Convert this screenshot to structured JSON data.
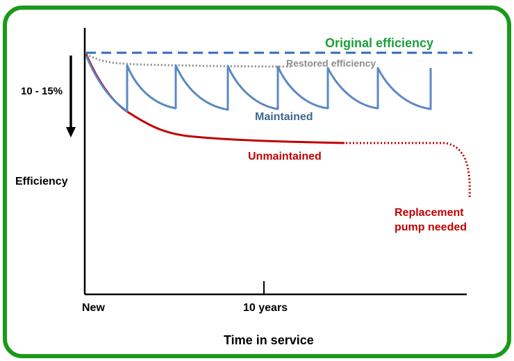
{
  "labels": {
    "original": "Original efficiency",
    "restored": "Restored efficiency",
    "drop": "10 - 15%",
    "maintained": "Maintained",
    "unmaintained": "Unmaintained",
    "replacement_line1": "Replacement",
    "replacement_line2": "pump needed",
    "y_axis": "Efficiency",
    "x_new": "New",
    "x_ten": "10 years",
    "x_axis": "Time in service"
  },
  "colors": {
    "frame": "#1a9a1a",
    "original": "#2d6db5",
    "original_text": "#1c9e3a",
    "restored": "#8c8c8c",
    "maintained": "#5a88c4",
    "maintained_text": "#3d6691",
    "unmaintained": "#c00000",
    "axis": "#000000"
  }
}
